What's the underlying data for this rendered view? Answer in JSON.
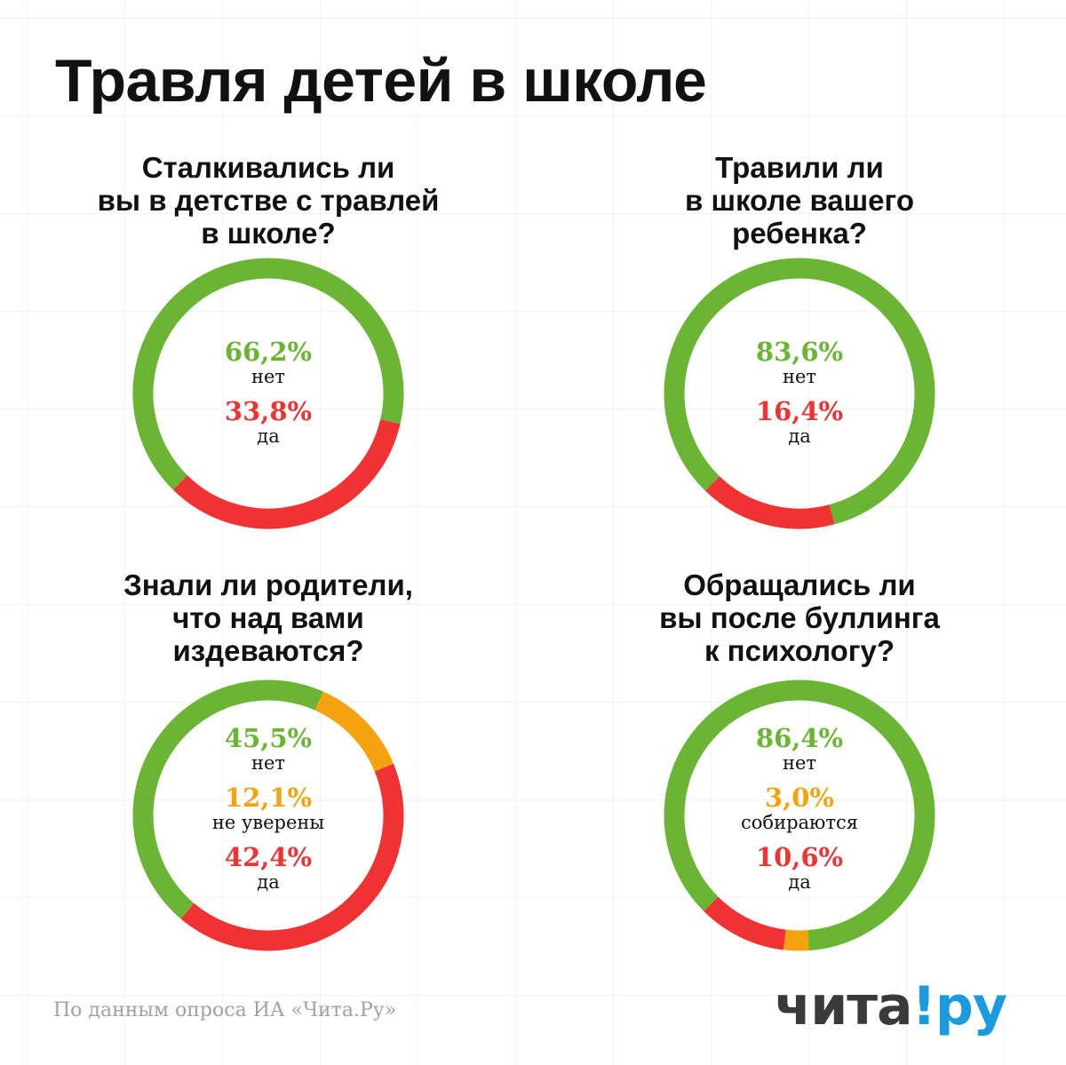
{
  "title": "Травля детей в школе",
  "colors": {
    "green": "#6ab533",
    "red": "#f03232",
    "orange": "#f4a30f",
    "text": "#111111",
    "source": "#9aa3ad",
    "logo_dark": "#3a3a3a",
    "logo_blue": "#1a9be0"
  },
  "chart_data": [
    {
      "type": "pie",
      "donut": true,
      "title_lines": [
        "Сталкивались ли",
        "вы в детстве с травлей",
        "в школе?"
      ],
      "segments": [
        {
          "label": "нет",
          "value": 66.2,
          "text": "66,2%",
          "color": "#6ab533"
        },
        {
          "label": "да",
          "value": 33.8,
          "text": "33,8%",
          "color": "#f03232"
        }
      ]
    },
    {
      "type": "pie",
      "donut": true,
      "title_lines": [
        "Травили ли",
        "в школе вашего",
        "ребенка?"
      ],
      "segments": [
        {
          "label": "нет",
          "value": 83.6,
          "text": "83,6%",
          "color": "#6ab533"
        },
        {
          "label": "да",
          "value": 16.4,
          "text": "16,4%",
          "color": "#f03232"
        }
      ]
    },
    {
      "type": "pie",
      "donut": true,
      "title_lines": [
        "Знали ли родители,",
        "что над вами",
        "издеваются?"
      ],
      "segments": [
        {
          "label": "нет",
          "value": 45.5,
          "text": "45,5%",
          "color": "#6ab533"
        },
        {
          "label": "не уверены",
          "value": 12.1,
          "text": "12,1%",
          "color": "#f4a30f"
        },
        {
          "label": "да",
          "value": 42.4,
          "text": "42,4%",
          "color": "#f03232"
        }
      ]
    },
    {
      "type": "pie",
      "donut": true,
      "title_lines": [
        "Обращались ли",
        "вы после буллинга",
        "к психологу?"
      ],
      "segments": [
        {
          "label": "нет",
          "value": 86.4,
          "text": "86,4%",
          "color": "#6ab533"
        },
        {
          "label": "собираются",
          "value": 3.0,
          "text": "3,0%",
          "color": "#f4a30f"
        },
        {
          "label": "да",
          "value": 10.6,
          "text": "10,6%",
          "color": "#f03232"
        }
      ]
    }
  ],
  "source": "По данным опроса ИА «Чита.Ру»",
  "logo": {
    "part1": "чита",
    "mark": "!",
    "part2": "ру"
  }
}
